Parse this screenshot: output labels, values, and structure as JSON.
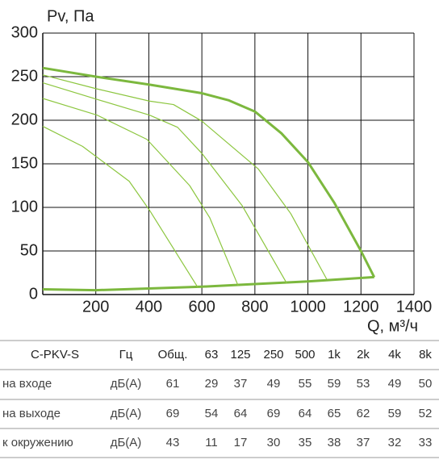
{
  "chart_data": {
    "type": "line",
    "ylabel": "Pv, Па",
    "xlabel": "Q, м³/ч",
    "xlim": [
      0,
      1400
    ],
    "xticks": [
      200,
      400,
      600,
      800,
      1000,
      1200,
      1400
    ],
    "ylim": [
      0,
      300
    ],
    "yticks": [
      0,
      50,
      100,
      150,
      200,
      250,
      300
    ],
    "grid": true,
    "series": [
      {
        "color": "#7cb83e",
        "width": 3,
        "x": [
          0,
          200,
          400,
          600,
          700,
          800,
          900,
          1000,
          1100,
          1200,
          1250
        ],
        "values": [
          260,
          250,
          241,
          231,
          223,
          210,
          185,
          152,
          105,
          50,
          20
        ]
      },
      {
        "color": "#7cb83e",
        "width": 3,
        "x": [
          0,
          200,
          400,
          600,
          800,
          1000,
          1250
        ],
        "values": [
          6,
          5,
          7,
          9,
          12,
          15,
          20
        ]
      },
      {
        "color": "#8cc63f",
        "width": 1.2,
        "x": [
          0,
          204,
          402,
          493,
          600,
          813,
          935,
          1072
        ],
        "values": [
          252,
          236,
          222,
          218,
          199,
          144,
          93,
          17
        ]
      },
      {
        "color": "#8cc63f",
        "width": 1.2,
        "x": [
          0,
          204,
          402,
          508,
          600,
          752,
          920
        ],
        "values": [
          243,
          224,
          206,
          192,
          162,
          102,
          13
        ]
      },
      {
        "color": "#8cc63f",
        "width": 1.2,
        "x": [
          0,
          204,
          393,
          554,
          630,
          737
        ],
        "values": [
          225,
          206,
          178,
          125,
          88,
          10
        ]
      },
      {
        "color": "#8cc63f",
        "width": 1.2,
        "x": [
          0,
          150,
          326,
          402,
          585
        ],
        "values": [
          193,
          170,
          130,
          97,
          8
        ]
      }
    ]
  },
  "table": {
    "header": [
      "C-PKV-S",
      "Гц",
      "Общ.",
      "63",
      "125",
      "250",
      "500",
      "1k",
      "2k",
      "4k",
      "8k"
    ],
    "rows": [
      [
        "на входе",
        "дБ(A)",
        61,
        29,
        37,
        49,
        55,
        59,
        53,
        49,
        50
      ],
      [
        "на выходе",
        "дБ(A)",
        69,
        54,
        64,
        69,
        64,
        65,
        62,
        59,
        52
      ],
      [
        "к окружению",
        "дБ(A)",
        43,
        11,
        17,
        30,
        35,
        38,
        37,
        32,
        33
      ]
    ]
  }
}
